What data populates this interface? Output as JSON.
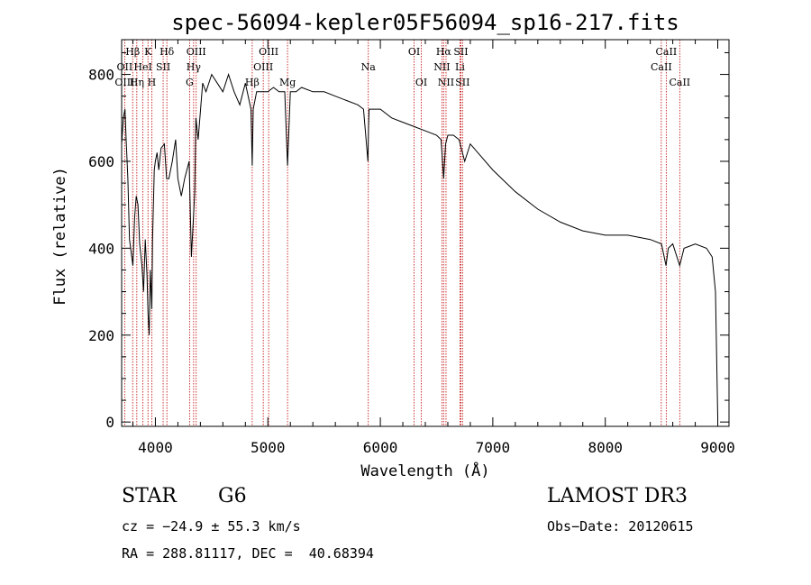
{
  "chart_data": {
    "type": "line",
    "title": "spec-56094-kepler05F56094_sp16-217.fits",
    "xlabel": "Wavelength (Å)",
    "ylabel": "Flux (relative)",
    "xlim": [
      3700,
      9100
    ],
    "ylim": [
      -10,
      880
    ],
    "xticks": [
      4000,
      5000,
      6000,
      7000,
      8000,
      9000
    ],
    "yticks": [
      0,
      200,
      400,
      600,
      800
    ],
    "spectrum": {
      "x": [
        3700,
        3715,
        3730,
        3740,
        3755,
        3770,
        3790,
        3800,
        3815,
        3830,
        3845,
        3860,
        3880,
        3895,
        3910,
        3925,
        3935,
        3945,
        3955,
        3968,
        3975,
        3990,
        4000,
        4015,
        4030,
        4050,
        4080,
        4100,
        4120,
        4150,
        4180,
        4200,
        4230,
        4260,
        4300,
        4320,
        4340,
        4350,
        4360,
        4380,
        4420,
        4450,
        4500,
        4550,
        4600,
        4650,
        4700,
        4750,
        4800,
        4850,
        4861,
        4870,
        4900,
        4950,
        5000,
        5050,
        5100,
        5150,
        5175,
        5200,
        5250,
        5300,
        5400,
        5500,
        5600,
        5700,
        5800,
        5850,
        5890,
        5895,
        5900,
        5950,
        6000,
        6100,
        6200,
        6300,
        6400,
        6500,
        6540,
        6563,
        6580,
        6600,
        6650,
        6700,
        6750,
        6800,
        7000,
        7200,
        7400,
        7600,
        7800,
        8000,
        8200,
        8400,
        8500,
        8540,
        8560,
        8600,
        8662,
        8700,
        8800,
        8900,
        8950,
        8980,
        9000
      ],
      "y": [
        640,
        700,
        720,
        650,
        560,
        420,
        380,
        360,
        470,
        520,
        500,
        410,
        360,
        300,
        420,
        340,
        250,
        200,
        350,
        260,
        420,
        580,
        600,
        620,
        580,
        630,
        640,
        560,
        560,
        600,
        650,
        560,
        520,
        560,
        600,
        380,
        480,
        530,
        700,
        650,
        780,
        760,
        800,
        780,
        760,
        800,
        760,
        730,
        780,
        720,
        590,
        720,
        760,
        760,
        760,
        770,
        760,
        760,
        590,
        760,
        760,
        770,
        760,
        760,
        750,
        740,
        730,
        720,
        600,
        680,
        720,
        720,
        720,
        700,
        690,
        680,
        670,
        660,
        650,
        560,
        640,
        660,
        660,
        650,
        600,
        640,
        580,
        530,
        490,
        460,
        440,
        430,
        430,
        420,
        410,
        360,
        400,
        410,
        360,
        400,
        410,
        400,
        380,
        300,
        10
      ]
    },
    "line_markers": [
      {
        "name": "Hβ",
        "wl": 3798,
        "row": 1
      },
      {
        "name": "OII",
        "wl": 3727,
        "row": 2
      },
      {
        "name": "OIII",
        "wl": 3727,
        "row": 3
      },
      {
        "name": "K",
        "wl": 3934,
        "row": 1
      },
      {
        "name": "HeI",
        "wl": 3889,
        "row": 2
      },
      {
        "name": "Hη",
        "wl": 3835,
        "row": 3
      },
      {
        "name": "SII",
        "wl": 4069,
        "row": 2
      },
      {
        "name": "H",
        "wl": 3968,
        "row": 3
      },
      {
        "name": "Hδ",
        "wl": 4102,
        "row": 1
      },
      {
        "name": "OIII",
        "wl": 4363,
        "row": 1
      },
      {
        "name": "Hγ",
        "wl": 4340,
        "row": 2
      },
      {
        "name": "G",
        "wl": 4304,
        "row": 3
      },
      {
        "name": "Hβ",
        "wl": 4861,
        "row": 3
      },
      {
        "name": "OIII",
        "wl": 5007,
        "row": 1
      },
      {
        "name": "OIII",
        "wl": 4959,
        "row": 2
      },
      {
        "name": "Mg",
        "wl": 5175,
        "row": 3
      },
      {
        "name": "Na",
        "wl": 5893,
        "row": 2
      },
      {
        "name": "OI",
        "wl": 6300,
        "row": 1
      },
      {
        "name": "OI",
        "wl": 6364,
        "row": 3
      },
      {
        "name": "Hα",
        "wl": 6563,
        "row": 1
      },
      {
        "name": "SII",
        "wl": 6716,
        "row": 1
      },
      {
        "name": "NII",
        "wl": 6548,
        "row": 2
      },
      {
        "name": "Li",
        "wl": 6708,
        "row": 2
      },
      {
        "name": "NII",
        "wl": 6584,
        "row": 3
      },
      {
        "name": "SII",
        "wl": 6731,
        "row": 3
      },
      {
        "name": "CaII",
        "wl": 8542,
        "row": 1
      },
      {
        "name": "CaII",
        "wl": 8498,
        "row": 2
      },
      {
        "name": "CaII",
        "wl": 8662,
        "row": 3
      }
    ]
  },
  "footer": {
    "object_class": "STAR",
    "subclass": "G6",
    "survey": "LAMOST DR3",
    "cz": "cz = −24.9 ± 55.3 km/s",
    "obs_date": "Obs−Date: 20120615",
    "coords": "RA = 288.81117, DEC =  40.68394"
  },
  "colors": {
    "marker_line": "#c00000",
    "axis": "#000000",
    "spectrum": "#000000"
  }
}
